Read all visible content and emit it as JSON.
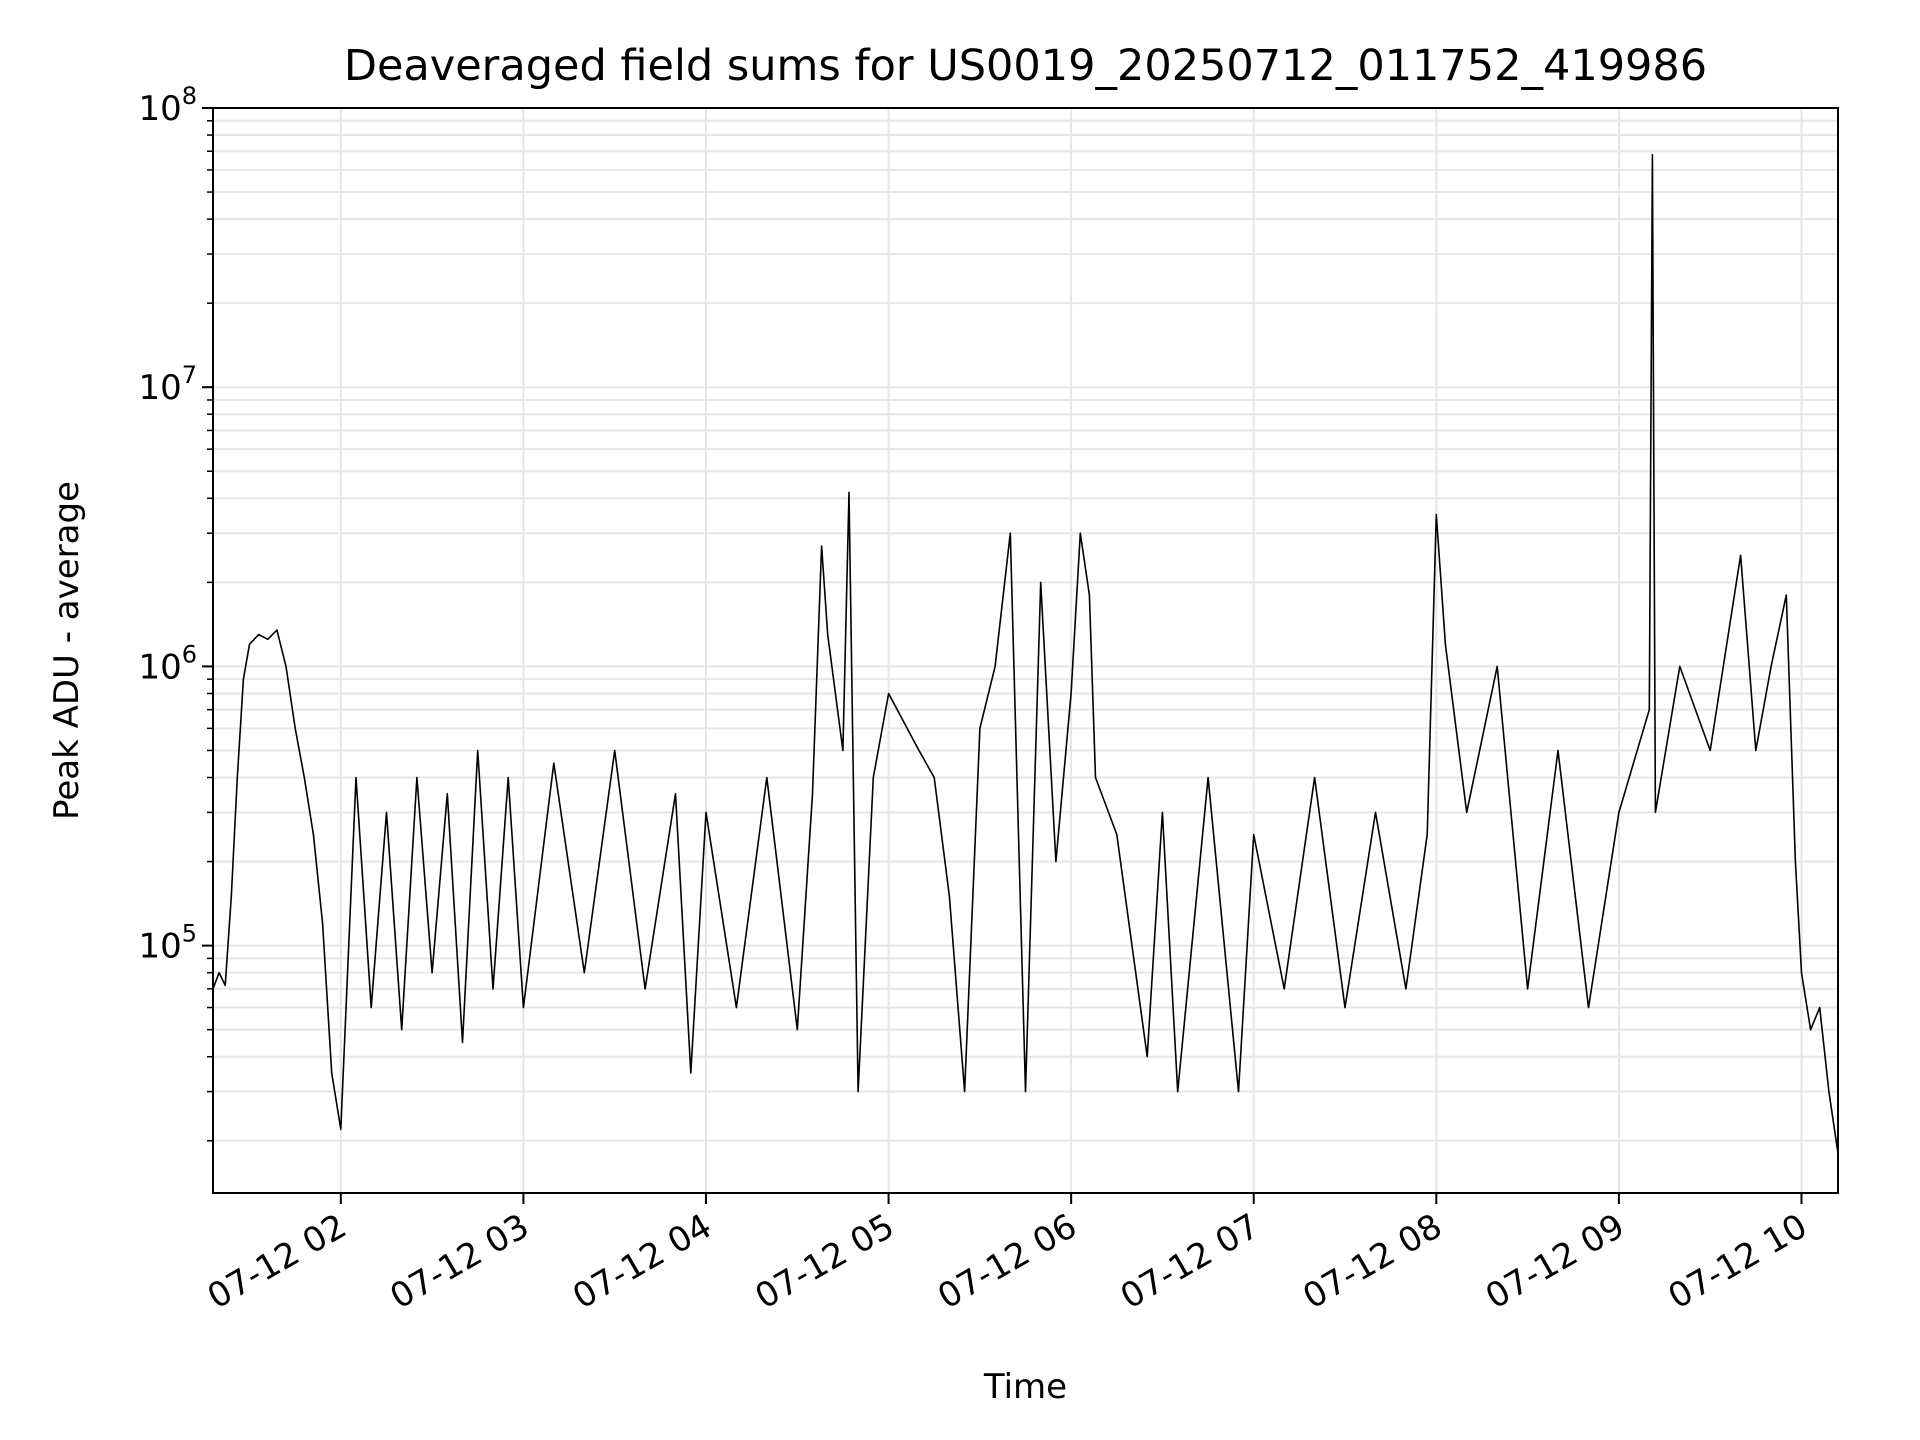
{
  "chart_data": {
    "type": "line",
    "title": "Deaveraged field sums for US0019_20250712_011752_419986",
    "xlabel": "Time",
    "ylabel": "Peak ADU - average",
    "yscale": "log",
    "ylim": [
      13000,
      100000000
    ],
    "xlim": [
      "2025-07-12 01:18",
      "2025-07-12 10:12"
    ],
    "grid": true,
    "line_color": "#000000",
    "grid_color": "#e6e6e6",
    "x_ticks": [
      {
        "t": "2025-07-12 02:00",
        "label": "07-12 02"
      },
      {
        "t": "2025-07-12 03:00",
        "label": "07-12 03"
      },
      {
        "t": "2025-07-12 04:00",
        "label": "07-12 04"
      },
      {
        "t": "2025-07-12 05:00",
        "label": "07-12 05"
      },
      {
        "t": "2025-07-12 06:00",
        "label": "07-12 06"
      },
      {
        "t": "2025-07-12 07:00",
        "label": "07-12 07"
      },
      {
        "t": "2025-07-12 08:00",
        "label": "07-12 08"
      },
      {
        "t": "2025-07-12 09:00",
        "label": "07-12 09"
      },
      {
        "t": "2025-07-12 10:00",
        "label": "07-12 10"
      }
    ],
    "y_ticks": [
      {
        "value": 100000,
        "base": "10",
        "exp": "5"
      },
      {
        "value": 1000000,
        "base": "10",
        "exp": "6"
      },
      {
        "value": 10000000,
        "base": "10",
        "exp": "7"
      },
      {
        "value": 100000000,
        "base": "10",
        "exp": "8"
      }
    ],
    "series": [
      {
        "points": [
          [
            "2025-07-12 01:18",
            70000
          ],
          [
            "2025-07-12 01:20",
            80000
          ],
          [
            "2025-07-12 01:22",
            72000
          ],
          [
            "2025-07-12 01:24",
            150000
          ],
          [
            "2025-07-12 01:26",
            400000
          ],
          [
            "2025-07-12 01:28",
            900000
          ],
          [
            "2025-07-12 01:30",
            1200000
          ],
          [
            "2025-07-12 01:33",
            1300000
          ],
          [
            "2025-07-12 01:36",
            1250000
          ],
          [
            "2025-07-12 01:39",
            1350000
          ],
          [
            "2025-07-12 01:42",
            1000000
          ],
          [
            "2025-07-12 01:45",
            600000
          ],
          [
            "2025-07-12 01:48",
            400000
          ],
          [
            "2025-07-12 01:51",
            250000
          ],
          [
            "2025-07-12 01:54",
            120000
          ],
          [
            "2025-07-12 01:57",
            35000
          ],
          [
            "2025-07-12 02:00",
            22000
          ],
          [
            "2025-07-12 02:05",
            400000
          ],
          [
            "2025-07-12 02:10",
            60000
          ],
          [
            "2025-07-12 02:15",
            300000
          ],
          [
            "2025-07-12 02:20",
            50000
          ],
          [
            "2025-07-12 02:25",
            400000
          ],
          [
            "2025-07-12 02:30",
            80000
          ],
          [
            "2025-07-12 02:35",
            350000
          ],
          [
            "2025-07-12 02:40",
            45000
          ],
          [
            "2025-07-12 02:45",
            500000
          ],
          [
            "2025-07-12 02:50",
            70000
          ],
          [
            "2025-07-12 02:55",
            400000
          ],
          [
            "2025-07-12 03:00",
            60000
          ],
          [
            "2025-07-12 03:10",
            450000
          ],
          [
            "2025-07-12 03:20",
            80000
          ],
          [
            "2025-07-12 03:30",
            500000
          ],
          [
            "2025-07-12 03:40",
            70000
          ],
          [
            "2025-07-12 03:50",
            350000
          ],
          [
            "2025-07-12 03:55",
            35000
          ],
          [
            "2025-07-12 04:00",
            300000
          ],
          [
            "2025-07-12 04:10",
            60000
          ],
          [
            "2025-07-12 04:20",
            400000
          ],
          [
            "2025-07-12 04:30",
            50000
          ],
          [
            "2025-07-12 04:35",
            350000
          ],
          [
            "2025-07-12 04:38",
            2700000
          ],
          [
            "2025-07-12 04:40",
            1300000
          ],
          [
            "2025-07-12 04:45",
            500000
          ],
          [
            "2025-07-12 04:47",
            4200000
          ],
          [
            "2025-07-12 04:50",
            30000
          ],
          [
            "2025-07-12 04:55",
            400000
          ],
          [
            "2025-07-12 05:00",
            800000
          ],
          [
            "2025-07-12 05:10",
            500000
          ],
          [
            "2025-07-12 05:15",
            400000
          ],
          [
            "2025-07-12 05:20",
            150000
          ],
          [
            "2025-07-12 05:25",
            30000
          ],
          [
            "2025-07-12 05:30",
            600000
          ],
          [
            "2025-07-12 05:35",
            1000000
          ],
          [
            "2025-07-12 05:40",
            3000000
          ],
          [
            "2025-07-12 05:45",
            30000
          ],
          [
            "2025-07-12 05:50",
            2000000
          ],
          [
            "2025-07-12 05:55",
            200000
          ],
          [
            "2025-07-12 06:00",
            800000
          ],
          [
            "2025-07-12 06:03",
            3000000
          ],
          [
            "2025-07-12 06:06",
            1800000
          ],
          [
            "2025-07-12 06:08",
            400000
          ],
          [
            "2025-07-12 06:15",
            250000
          ],
          [
            "2025-07-12 06:25",
            40000
          ],
          [
            "2025-07-12 06:30",
            300000
          ],
          [
            "2025-07-12 06:35",
            30000
          ],
          [
            "2025-07-12 06:45",
            400000
          ],
          [
            "2025-07-12 06:55",
            30000
          ],
          [
            "2025-07-12 07:00",
            250000
          ],
          [
            "2025-07-12 07:10",
            70000
          ],
          [
            "2025-07-12 07:20",
            400000
          ],
          [
            "2025-07-12 07:30",
            60000
          ],
          [
            "2025-07-12 07:40",
            300000
          ],
          [
            "2025-07-12 07:50",
            70000
          ],
          [
            "2025-07-12 07:57",
            250000
          ],
          [
            "2025-07-12 08:00",
            3500000
          ],
          [
            "2025-07-12 08:03",
            1200000
          ],
          [
            "2025-07-12 08:10",
            300000
          ],
          [
            "2025-07-12 08:20",
            1000000
          ],
          [
            "2025-07-12 08:30",
            70000
          ],
          [
            "2025-07-12 08:40",
            500000
          ],
          [
            "2025-07-12 08:50",
            60000
          ],
          [
            "2025-07-12 09:00",
            300000
          ],
          [
            "2025-07-12 09:10",
            700000
          ],
          [
            "2025-07-12 09:11",
            68000000
          ],
          [
            "2025-07-12 09:12",
            300000
          ],
          [
            "2025-07-12 09:20",
            1000000
          ],
          [
            "2025-07-12 09:30",
            500000
          ],
          [
            "2025-07-12 09:40",
            2500000
          ],
          [
            "2025-07-12 09:45",
            500000
          ],
          [
            "2025-07-12 09:50",
            1000000
          ],
          [
            "2025-07-12 09:55",
            1800000
          ],
          [
            "2025-07-12 09:58",
            200000
          ],
          [
            "2025-07-12 10:00",
            80000
          ],
          [
            "2025-07-12 10:03",
            50000
          ],
          [
            "2025-07-12 10:06",
            60000
          ],
          [
            "2025-07-12 10:09",
            30000
          ],
          [
            "2025-07-12 10:12",
            18000
          ]
        ]
      }
    ]
  }
}
